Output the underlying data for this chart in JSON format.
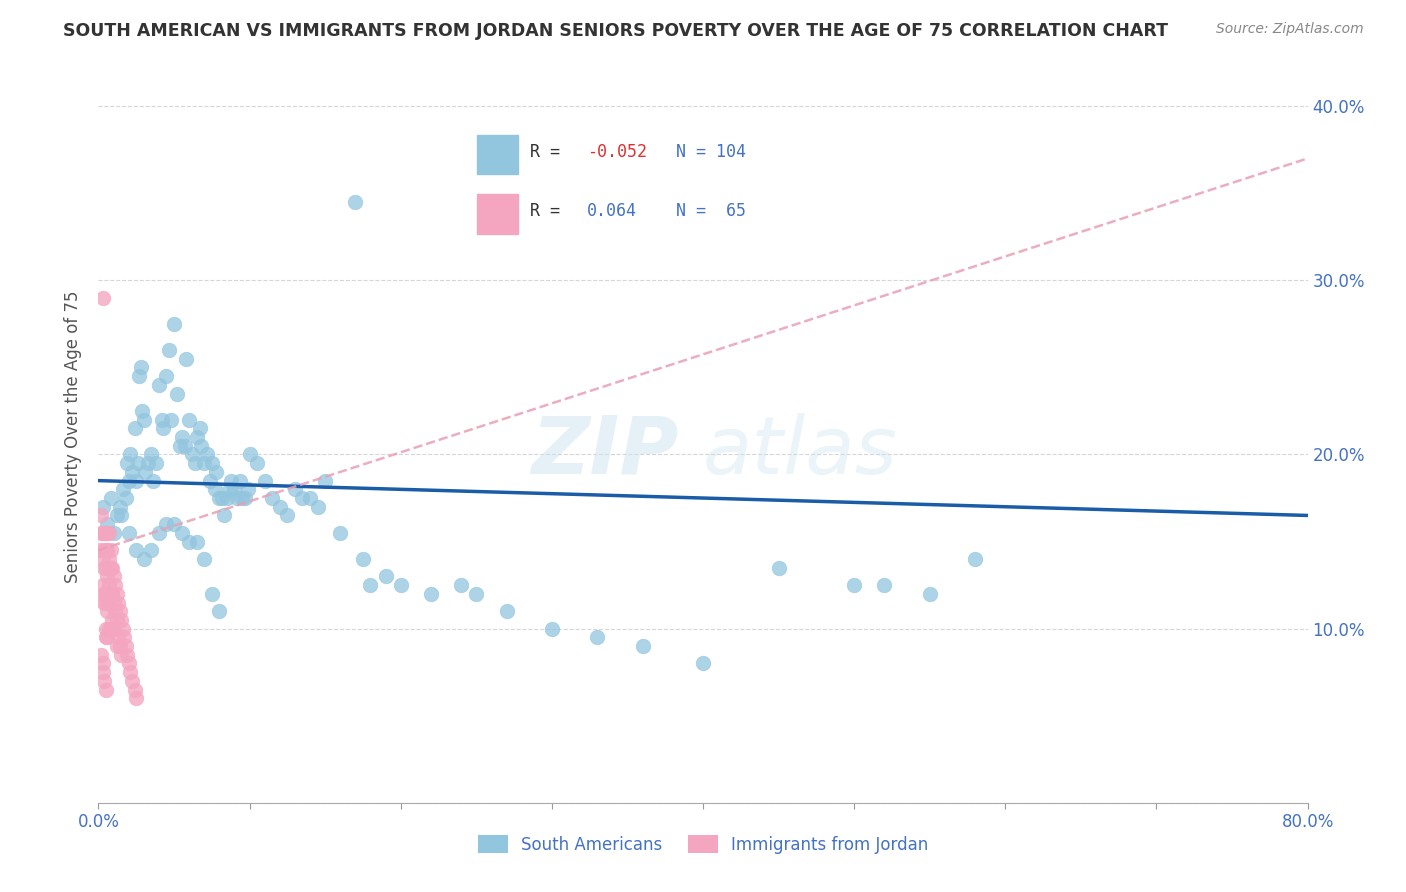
{
  "title": "SOUTH AMERICAN VS IMMIGRANTS FROM JORDAN SENIORS POVERTY OVER THE AGE OF 75 CORRELATION CHART",
  "source": "Source: ZipAtlas.com",
  "ylabel": "Seniors Poverty Over the Age of 75",
  "xlim": [
    0.0,
    0.8
  ],
  "ylim": [
    0.0,
    0.42
  ],
  "legend_R1": "-0.052",
  "legend_N1": "104",
  "legend_R2": "0.064",
  "legend_N2": "65",
  "color_blue": "#92c5de",
  "color_pink": "#f4a6c0",
  "color_blue_line": "#1a5ca8",
  "color_pink_line": "#e8a0b4",
  "watermark_zip": "ZIP",
  "watermark_atlas": "atlas",
  "sa_line_x0": 0.0,
  "sa_line_x1": 0.8,
  "sa_line_y0": 0.185,
  "sa_line_y1": 0.165,
  "jord_line_x0": 0.0,
  "jord_line_x1": 0.8,
  "jord_line_y0": 0.145,
  "jord_line_y1": 0.37,
  "sa_x": [
    0.003,
    0.006,
    0.008,
    0.01,
    0.012,
    0.014,
    0.016,
    0.018,
    0.019,
    0.02,
    0.021,
    0.022,
    0.024,
    0.025,
    0.026,
    0.027,
    0.028,
    0.029,
    0.03,
    0.031,
    0.033,
    0.035,
    0.036,
    0.038,
    0.04,
    0.042,
    0.043,
    0.045,
    0.047,
    0.048,
    0.05,
    0.052,
    0.054,
    0.055,
    0.057,
    0.058,
    0.06,
    0.062,
    0.064,
    0.065,
    0.067,
    0.068,
    0.07,
    0.072,
    0.074,
    0.075,
    0.077,
    0.078,
    0.08,
    0.082,
    0.083,
    0.085,
    0.087,
    0.088,
    0.09,
    0.092,
    0.094,
    0.095,
    0.097,
    0.099,
    0.1,
    0.105,
    0.11,
    0.115,
    0.12,
    0.125,
    0.13,
    0.135,
    0.14,
    0.145,
    0.15,
    0.16,
    0.17,
    0.175,
    0.18,
    0.19,
    0.2,
    0.22,
    0.24,
    0.25,
    0.27,
    0.3,
    0.33,
    0.36,
    0.4,
    0.45,
    0.5,
    0.52,
    0.55,
    0.58,
    0.015,
    0.02,
    0.025,
    0.03,
    0.035,
    0.04,
    0.045,
    0.05,
    0.055,
    0.06,
    0.065,
    0.07,
    0.075,
    0.08
  ],
  "sa_y": [
    0.17,
    0.16,
    0.175,
    0.155,
    0.165,
    0.17,
    0.18,
    0.175,
    0.195,
    0.185,
    0.2,
    0.19,
    0.215,
    0.185,
    0.195,
    0.245,
    0.25,
    0.225,
    0.22,
    0.19,
    0.195,
    0.2,
    0.185,
    0.195,
    0.24,
    0.22,
    0.215,
    0.245,
    0.26,
    0.22,
    0.275,
    0.235,
    0.205,
    0.21,
    0.205,
    0.255,
    0.22,
    0.2,
    0.195,
    0.21,
    0.215,
    0.205,
    0.195,
    0.2,
    0.185,
    0.195,
    0.18,
    0.19,
    0.175,
    0.175,
    0.165,
    0.175,
    0.18,
    0.185,
    0.18,
    0.175,
    0.185,
    0.175,
    0.175,
    0.18,
    0.2,
    0.195,
    0.185,
    0.175,
    0.17,
    0.165,
    0.18,
    0.175,
    0.175,
    0.17,
    0.185,
    0.155,
    0.345,
    0.14,
    0.125,
    0.13,
    0.125,
    0.12,
    0.125,
    0.12,
    0.11,
    0.1,
    0.095,
    0.09,
    0.08,
    0.135,
    0.125,
    0.125,
    0.12,
    0.14,
    0.165,
    0.155,
    0.145,
    0.14,
    0.145,
    0.155,
    0.16,
    0.16,
    0.155,
    0.15,
    0.15,
    0.14,
    0.12,
    0.11
  ],
  "jord_x": [
    0.001,
    0.002,
    0.002,
    0.003,
    0.003,
    0.003,
    0.003,
    0.004,
    0.004,
    0.004,
    0.004,
    0.004,
    0.005,
    0.005,
    0.005,
    0.005,
    0.005,
    0.005,
    0.005,
    0.006,
    0.006,
    0.006,
    0.006,
    0.006,
    0.006,
    0.007,
    0.007,
    0.007,
    0.007,
    0.007,
    0.008,
    0.008,
    0.008,
    0.008,
    0.009,
    0.009,
    0.009,
    0.01,
    0.01,
    0.01,
    0.011,
    0.011,
    0.012,
    0.012,
    0.012,
    0.013,
    0.013,
    0.014,
    0.014,
    0.015,
    0.015,
    0.016,
    0.017,
    0.018,
    0.019,
    0.02,
    0.021,
    0.022,
    0.024,
    0.025,
    0.002,
    0.003,
    0.003,
    0.004,
    0.005
  ],
  "jord_y": [
    0.145,
    0.165,
    0.155,
    0.29,
    0.155,
    0.14,
    0.125,
    0.155,
    0.145,
    0.135,
    0.12,
    0.115,
    0.155,
    0.145,
    0.135,
    0.12,
    0.115,
    0.1,
    0.095,
    0.155,
    0.145,
    0.13,
    0.12,
    0.11,
    0.095,
    0.155,
    0.14,
    0.125,
    0.115,
    0.1,
    0.145,
    0.135,
    0.12,
    0.1,
    0.135,
    0.12,
    0.105,
    0.13,
    0.115,
    0.1,
    0.125,
    0.11,
    0.12,
    0.105,
    0.09,
    0.115,
    0.095,
    0.11,
    0.09,
    0.105,
    0.085,
    0.1,
    0.095,
    0.09,
    0.085,
    0.08,
    0.075,
    0.07,
    0.065,
    0.06,
    0.085,
    0.08,
    0.075,
    0.07,
    0.065
  ]
}
